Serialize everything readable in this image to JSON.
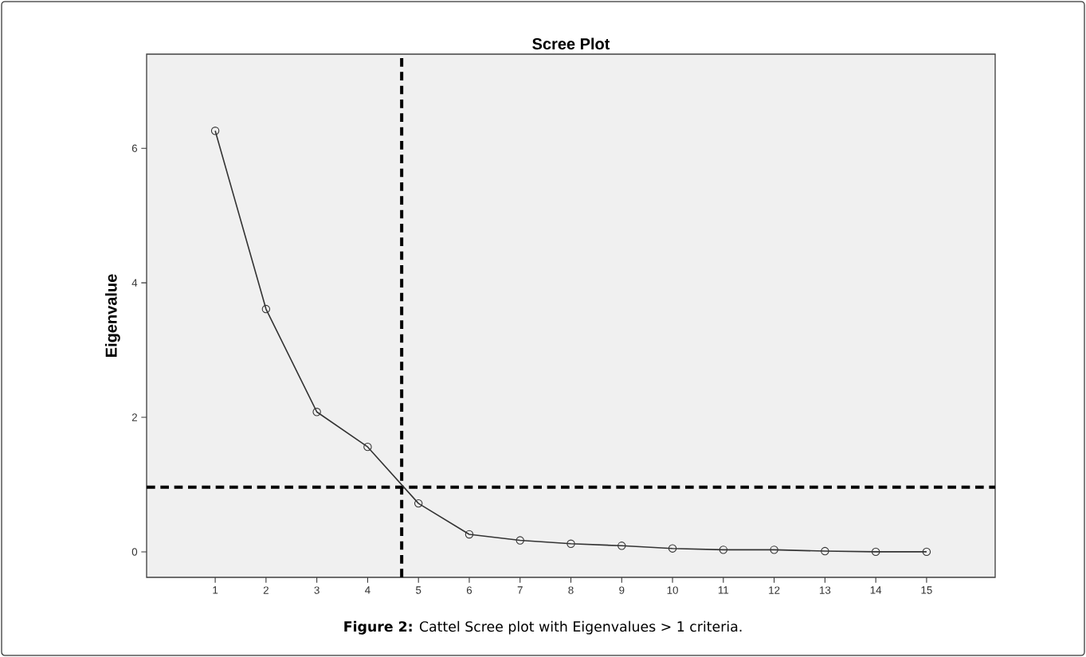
{
  "chart_data": {
    "type": "line",
    "title": "Scree Plot",
    "ylabel": "Eigenvalue",
    "annotations": [
      "**Figure 2:** Cattel Scree plot with Eigenvalues > 1 criteria."
    ],
    "x": [
      1,
      2,
      3,
      4,
      5,
      6,
      7,
      8,
      9,
      10,
      11,
      12,
      13,
      14,
      15
    ],
    "series": [
      {
        "color": "#333333",
        "values": [
          6.26,
          3.61,
          2.08,
          1.56,
          0.72,
          0.26,
          0.17,
          0.12,
          0.09,
          0.05,
          0.03,
          0.03,
          0.01,
          0.0,
          0.0
        ]
      }
    ],
    "xlim": [
      -0.35,
      16.35
    ],
    "xticks": [
      1,
      2,
      3,
      4,
      5,
      6,
      7,
      8,
      9,
      10,
      11,
      12,
      13,
      14,
      15
    ],
    "ylim": [
      -0.38,
      7.4
    ],
    "yticks": [
      0,
      2,
      4,
      6
    ],
    "marker": "circle",
    "line_style": "solid",
    "grid": false,
    "ref_lines": [
      {
        "axis": "y",
        "value": 0.96,
        "color": "#000000",
        "line_style": "dashed"
      },
      {
        "axis": "x",
        "value": 4.67,
        "color": "#000000",
        "line_style": "dashed"
      }
    ]
  }
}
